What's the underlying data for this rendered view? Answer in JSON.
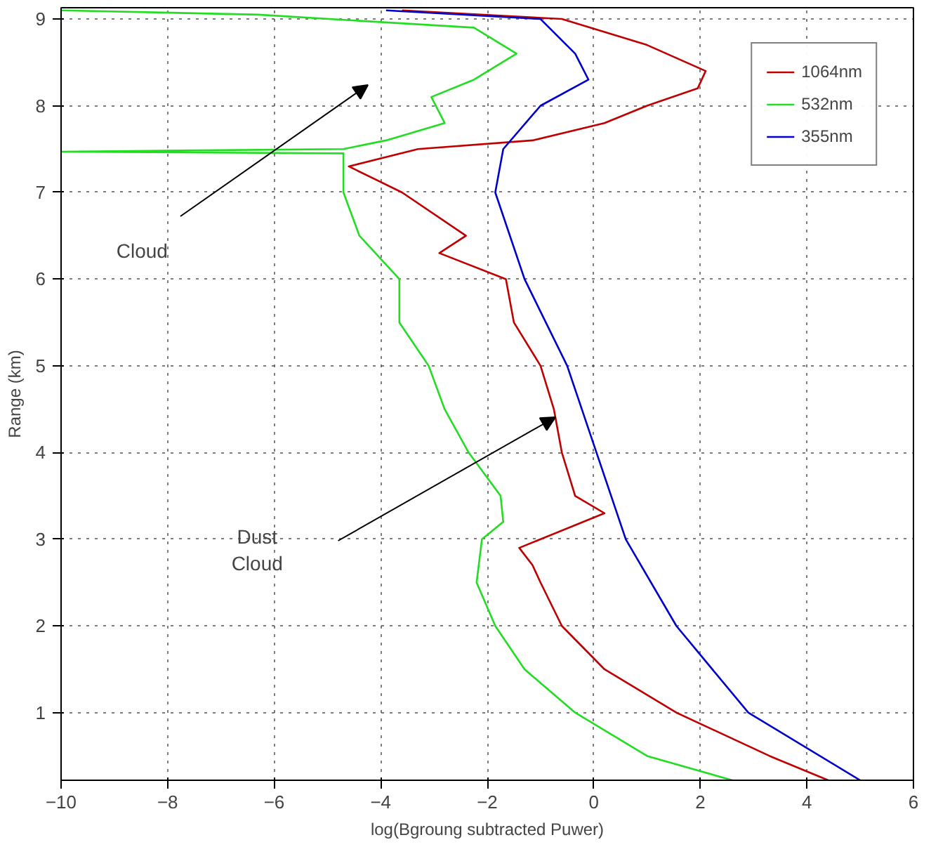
{
  "chart_data": {
    "type": "line",
    "xlabel": "log(Bgroung subtracted Puwer)",
    "ylabel": "Range (km)",
    "xlim": [
      -10,
      6
    ],
    "ylim": [
      0.22,
      9.13
    ],
    "xticks": [
      -10,
      -8,
      -6,
      -4,
      -2,
      0,
      2,
      4,
      6
    ],
    "yticks": [
      1,
      2,
      3,
      4,
      5,
      6,
      7,
      8,
      9
    ],
    "grid": true,
    "legend": "top right",
    "line_style": "solid",
    "marker": "none",
    "annotations": [
      "Cloud",
      "Dust\nCloud"
    ],
    "series": [
      {
        "name": "1064nm",
        "color": "#c00000",
        "x": [
          4.4,
          3.3,
          1.55,
          0.2,
          -0.6,
          -1.0,
          -1.15,
          -1.4,
          -1.0,
          0.2,
          -0.35,
          -0.6,
          -0.75,
          -1.0,
          -1.5,
          -1.65,
          -2.9,
          -2.4,
          -3.6,
          -4.6,
          -3.3,
          -1.15,
          0.2,
          1.0,
          1.95,
          2.1,
          1.0,
          -0.6,
          -3.6
        ],
        "values": [
          0.22,
          0.5,
          1,
          1.5,
          2,
          2.5,
          2.7,
          2.9,
          3.0,
          3.3,
          3.5,
          4,
          4.5,
          5,
          5.5,
          6,
          6.3,
          6.5,
          7,
          7.3,
          7.5,
          7.6,
          7.8,
          8.0,
          8.2,
          8.4,
          8.7,
          9,
          9.1
        ]
      },
      {
        "name": "532nm",
        "color": "#22dd22",
        "x": [
          2.6,
          1.0,
          -0.35,
          -1.3,
          -1.85,
          -2.2,
          -2.1,
          -1.7,
          -1.75,
          -2.35,
          -2.8,
          -3.1,
          -3.65,
          -3.65,
          -4.4,
          -4.7,
          -4.7,
          -4.7,
          -10,
          -4.7,
          -3.9,
          -2.8,
          -3.05,
          -2.25,
          -1.45,
          -2.25,
          -6.3,
          -10
        ],
        "values": [
          0.22,
          0.5,
          1,
          1.5,
          2,
          2.5,
          3,
          3.2,
          3.5,
          4,
          4.5,
          5,
          5.5,
          6,
          6.5,
          7,
          7.3,
          7.45,
          7.47,
          7.5,
          7.6,
          7.8,
          8.1,
          8.3,
          8.6,
          8.9,
          9.05,
          9.1
        ]
      },
      {
        "name": "355nm",
        "color": "#0000cc",
        "x": [
          5.0,
          2.9,
          1.55,
          0.6,
          0.05,
          -0.5,
          -1.3,
          -1.85,
          -1.7,
          -1.0,
          -0.1,
          -0.35,
          -1.0,
          -3.9
        ],
        "values": [
          0.22,
          1,
          2,
          3,
          4,
          5,
          6,
          7,
          7.5,
          8,
          8.3,
          8.6,
          9,
          9.1
        ]
      }
    ]
  }
}
